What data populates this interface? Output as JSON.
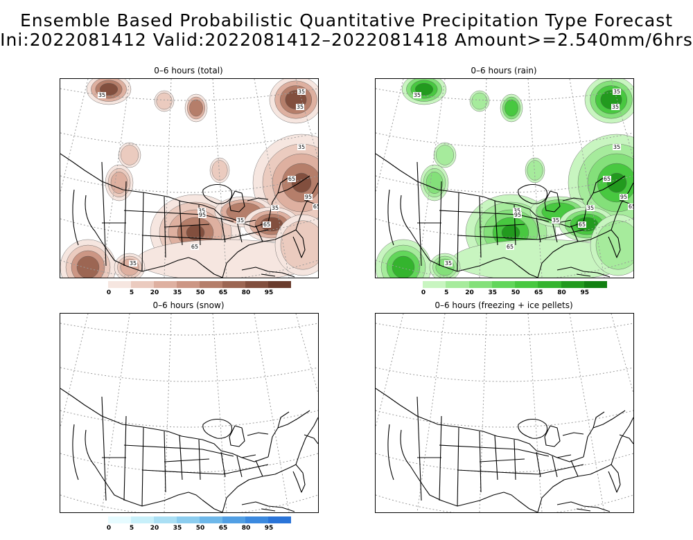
{
  "header": {
    "line1": "Ensemble Based Probabilistic Quantitative Precipitation Type Forecast",
    "line2": "Ini:2022081412 Valid:2022081412–2022081418 Amount>=2.540mm/6hrs"
  },
  "panels": [
    {
      "title": "0–6 hours (total)",
      "legend_labels": [
        "0",
        "5",
        "20",
        "35",
        "50",
        "65",
        "80",
        "95"
      ],
      "colors": [
        "#f6e6e0",
        "#ebcbbf",
        "#deb0a0",
        "#cc9684",
        "#b57e6a",
        "#9c6653",
        "#824f3e",
        "#6a3c2d"
      ],
      "contour_labels": [
        "35",
        "35",
        "35",
        "35",
        "65",
        "95",
        "65",
        "35",
        "65",
        "35",
        "35",
        "95",
        "65",
        "35"
      ]
    },
    {
      "title": "0–6 hours (rain)",
      "legend_labels": [
        "0",
        "5",
        "20",
        "35",
        "50",
        "65",
        "80",
        "95"
      ],
      "colors": [
        "#c8f5c0",
        "#a6eb9c",
        "#84e07a",
        "#62d65a",
        "#48c840",
        "#34b42e",
        "#229a1e",
        "#128012"
      ],
      "contour_labels": [
        "35",
        "35",
        "35",
        "35",
        "65",
        "95",
        "65",
        "35",
        "65",
        "35",
        "35",
        "95",
        "65",
        "35"
      ]
    },
    {
      "title": "0–6 hours (snow)",
      "legend_labels": [
        "0",
        "5",
        "20",
        "35",
        "50",
        "65",
        "80",
        "95"
      ],
      "colors": [
        "#e6fbff",
        "#c8f0fa",
        "#aadff4",
        "#8ccdef",
        "#6eb8ea",
        "#519fe4",
        "#3b89df",
        "#2a74d8"
      ]
    },
    {
      "title": "0–6 hours (freezing + ice pellets)"
    }
  ]
}
